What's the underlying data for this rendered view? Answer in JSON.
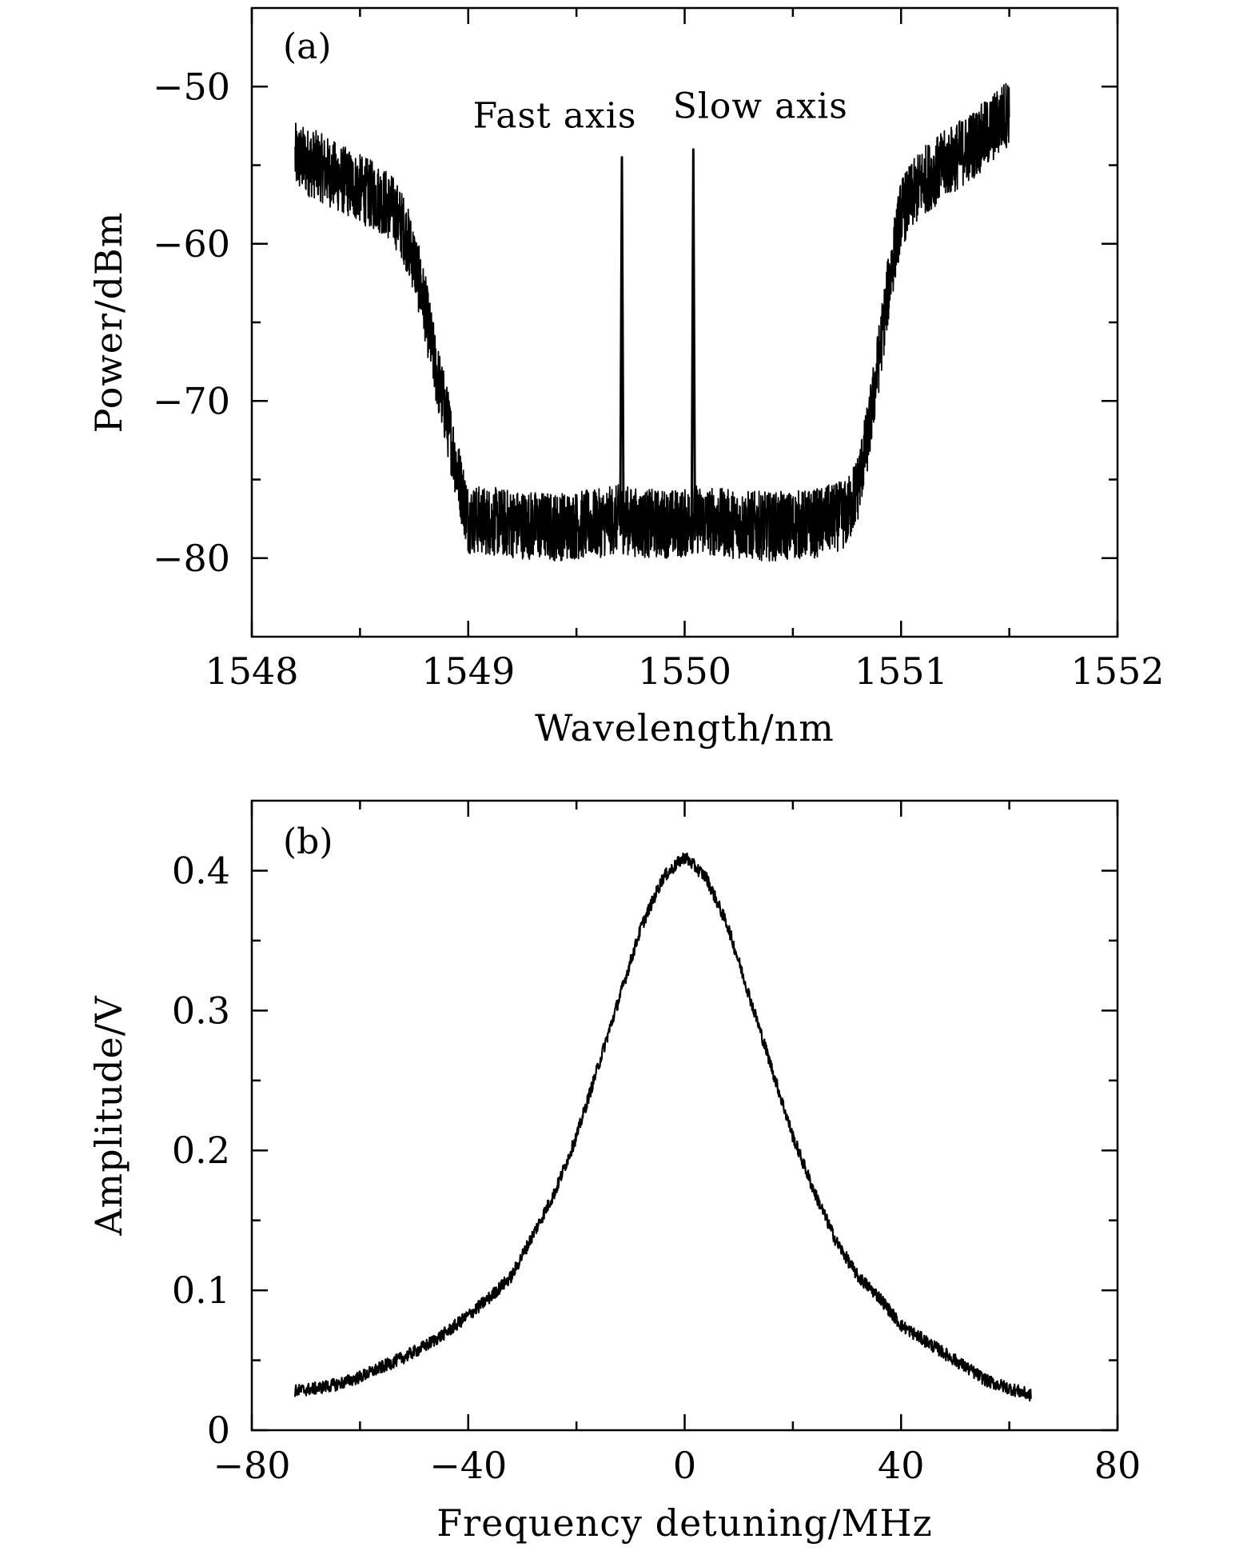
{
  "chart_data": [
    {
      "type": "line",
      "panel_label": "(a)",
      "xlabel": "Wavelength/nm",
      "ylabel": "Power/dBm",
      "xlim": [
        1548,
        1552
      ],
      "ylim": [
        -85,
        -45
      ],
      "xticks": [
        1548,
        1549,
        1550,
        1551,
        1552
      ],
      "xtick_labels": [
        "1548",
        "1549",
        "1550",
        "1551",
        "1552"
      ],
      "yticks": [
        -80,
        -70,
        -60,
        -50
      ],
      "ytick_labels": [
        "−80",
        "−70",
        "−60",
        "−50"
      ],
      "x_minor_step": 0.5,
      "y_minor_step": 5,
      "grid": false,
      "series": [
        {
          "x": [
            1548.2,
            1548.3,
            1548.4,
            1548.5,
            1548.6,
            1548.65,
            1548.7,
            1548.75,
            1548.8,
            1548.85,
            1548.9,
            1548.95,
            1549.0,
            1549.2,
            1549.4,
            1549.6,
            1549.7,
            1549.8,
            1550.0,
            1550.04,
            1550.2,
            1550.4,
            1550.6,
            1550.75,
            1550.8,
            1550.85,
            1550.9,
            1550.95,
            1551.0,
            1551.1,
            1551.2,
            1551.3,
            1551.4,
            1551.5
          ],
          "y": [
            -54.5,
            -55.0,
            -55.8,
            -56.5,
            -57.2,
            -57.8,
            -59.0,
            -61.0,
            -64.0,
            -68.0,
            -71.0,
            -74.5,
            -77.5,
            -77.8,
            -78.0,
            -77.8,
            -77.5,
            -77.8,
            -77.8,
            -77.5,
            -77.8,
            -78.0,
            -77.8,
            -77.2,
            -75.5,
            -72.0,
            -67.0,
            -62.0,
            -58.0,
            -56.0,
            -55.0,
            -54.0,
            -53.0,
            -51.5
          ]
        }
      ],
      "peaks": [
        {
          "x": 1549.71,
          "y": -54.5
        },
        {
          "x": 1550.04,
          "y": -54.0
        }
      ],
      "annotations": [
        {
          "text": "Fast axis",
          "x": 1549.4,
          "y": -52.6
        },
        {
          "text": "Slow axis",
          "x": 1550.35,
          "y": -52.0
        }
      ]
    },
    {
      "type": "line",
      "panel_label": "(b)",
      "xlabel": "Frequency detuning/MHz",
      "ylabel": "Amplitude/V",
      "xlim": [
        -80,
        80
      ],
      "ylim": [
        0,
        0.45
      ],
      "xticks": [
        -80,
        -40,
        0,
        40,
        80
      ],
      "xtick_labels": [
        "−80",
        "−40",
        "0",
        "40",
        "80"
      ],
      "yticks": [
        0,
        0.1,
        0.2,
        0.3,
        0.4
      ],
      "ytick_labels": [
        "0",
        "0.1",
        "0.2",
        "0.3",
        "0.4"
      ],
      "x_minor_step": 20,
      "y_minor_step": 0.05,
      "grid": false,
      "series": [
        {
          "x": [
            -72,
            -68,
            -64,
            -60,
            -56,
            -52,
            -48,
            -44,
            -40,
            -36,
            -32,
            -28,
            -24,
            -20,
            -16,
            -12,
            -8,
            -4,
            0,
            4,
            8,
            12,
            16,
            20,
            24,
            28,
            32,
            36,
            40,
            44,
            48,
            52,
            56,
            60,
            64
          ],
          "y": [
            0.028,
            0.03,
            0.033,
            0.038,
            0.045,
            0.052,
            0.06,
            0.07,
            0.082,
            0.095,
            0.11,
            0.14,
            0.17,
            0.21,
            0.26,
            0.31,
            0.36,
            0.395,
            0.41,
            0.395,
            0.36,
            0.31,
            0.26,
            0.21,
            0.17,
            0.135,
            0.11,
            0.095,
            0.075,
            0.065,
            0.055,
            0.045,
            0.035,
            0.03,
            0.025
          ]
        }
      ]
    }
  ]
}
